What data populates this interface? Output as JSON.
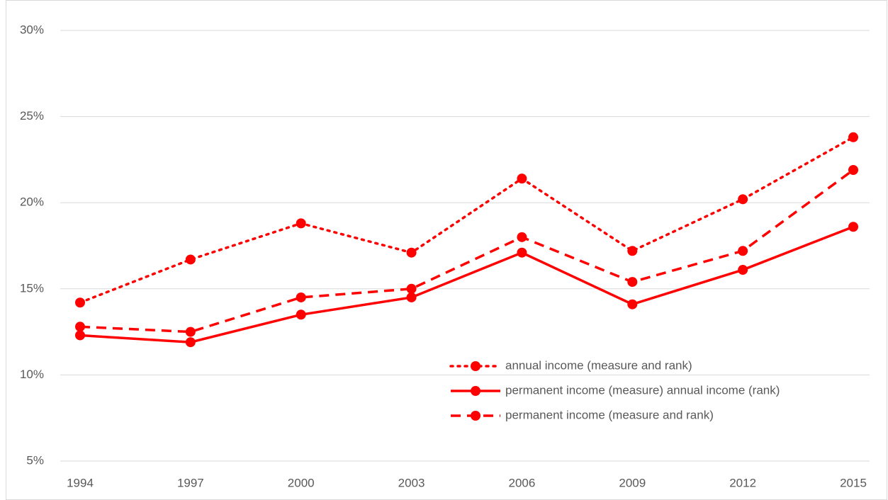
{
  "chart_data": {
    "type": "line",
    "categories": [
      "1994",
      "1997",
      "2000",
      "2003",
      "2006",
      "2009",
      "2012",
      "2015"
    ],
    "series": [
      {
        "name": "annual income (measure and rank)",
        "color": "#ff0000",
        "dash": "dot",
        "values": [
          14.2,
          16.7,
          18.8,
          17.1,
          21.4,
          17.2,
          20.2,
          23.8
        ]
      },
      {
        "name": "permanent income (measure) annual income (rank)",
        "color": "#ff0000",
        "dash": "solid",
        "values": [
          12.3,
          11.9,
          13.5,
          14.5,
          17.1,
          14.1,
          16.1,
          18.6
        ]
      },
      {
        "name": "permanent income (measure and rank)",
        "color": "#ff0000",
        "dash": "dash",
        "values": [
          12.8,
          12.5,
          14.5,
          15.0,
          18.0,
          15.4,
          17.2,
          21.9
        ]
      }
    ],
    "ylim": [
      5,
      30
    ],
    "yticks": [
      {
        "value": 5,
        "label": "5%"
      },
      {
        "value": 10,
        "label": "10%"
      },
      {
        "value": 15,
        "label": "15%"
      },
      {
        "value": 20,
        "label": "20%"
      },
      {
        "value": 25,
        "label": "25%"
      },
      {
        "value": 30,
        "label": "30%"
      }
    ],
    "grid": true,
    "legend_position": "lower-right"
  }
}
